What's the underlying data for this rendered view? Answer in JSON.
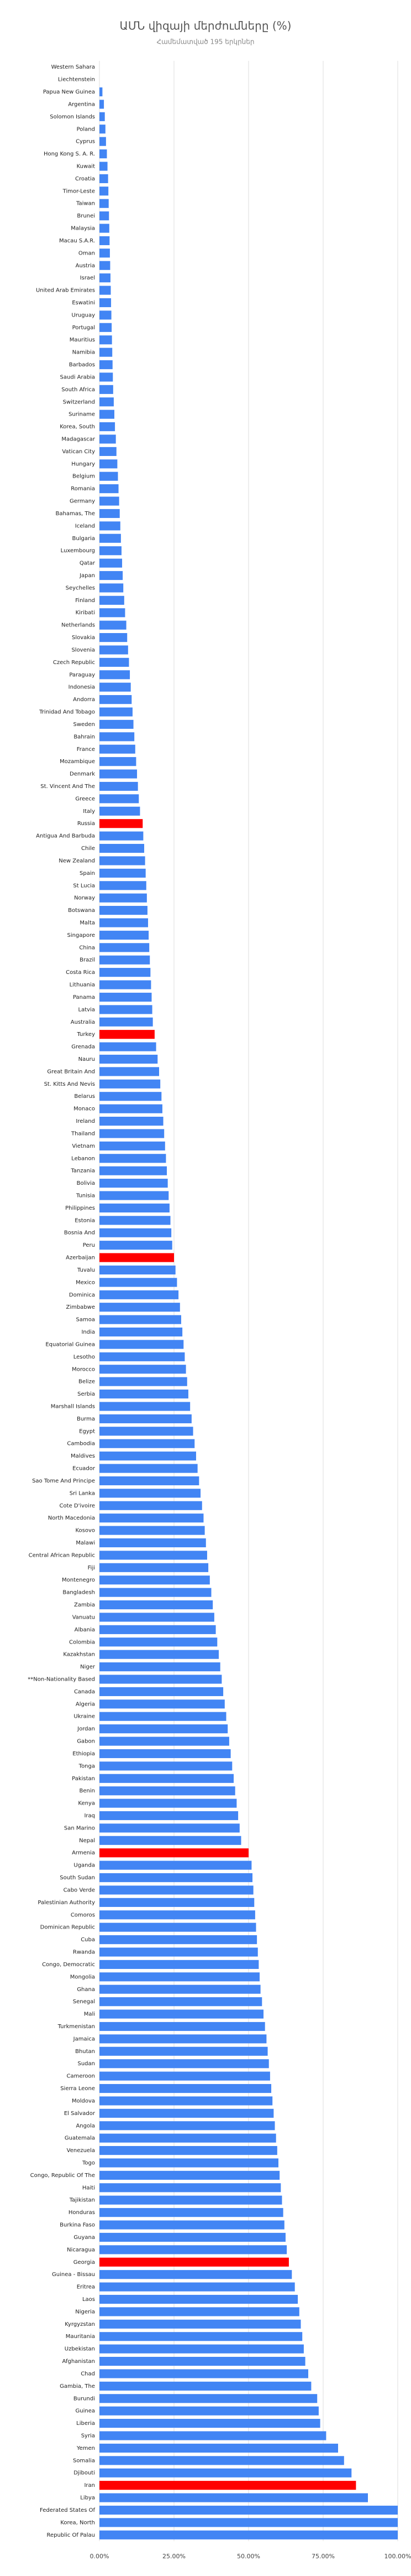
{
  "chart_data": {
    "type": "barh",
    "title": "ԱՄՆ վիզայի մերժումները (%)",
    "subtitle": "Համեմատված 195 երկրներ",
    "color": "#4285f4",
    "highlight": {
      "color": "#ff0000",
      "categories": [
        "Russia",
        "Turkey",
        "Azerbaijan",
        "Armenia",
        "Georgia",
        "Iran"
      ]
    },
    "grid": true,
    "xlim": [
      0,
      100
    ],
    "xticks": [
      {
        "value": 0,
        "label": "0.00%"
      },
      {
        "value": 25,
        "label": "25.00%"
      },
      {
        "value": 50,
        "label": "50.00%"
      },
      {
        "value": 75,
        "label": "75.00%"
      },
      {
        "value": 100,
        "label": "100.00%"
      }
    ],
    "categories": [
      "Western Sahara",
      "Liechtenstein",
      "Papua New Guinea",
      "Argentina",
      "Solomon Islands",
      "Poland",
      "Cyprus",
      "Hong Kong S. A. R.",
      "Kuwait",
      "Croatia",
      "Timor-Leste",
      "Taiwan",
      "Brunei",
      "Malaysia",
      "Macau S.A.R.",
      "Oman",
      "Austria",
      "Israel",
      "United Arab Emirates",
      "Eswatini",
      "Uruguay",
      "Portugal",
      "Mauritius",
      "Namibia",
      "Barbados",
      "Saudi Arabia",
      "South Africa",
      "Switzerland",
      "Suriname",
      "Korea, South",
      "Madagascar",
      "Vatican City",
      "Hungary",
      "Belgium",
      "Romania",
      "Germany",
      "Bahamas, The",
      "Iceland",
      "Bulgaria",
      "Luxembourg",
      "Qatar",
      "Japan",
      "Seychelles",
      "Finland",
      "Kiribati",
      "Netherlands",
      "Slovakia",
      "Slovenia",
      "Czech Republic",
      "Paraguay",
      "Indonesia",
      "Andorra",
      "Trinidad And Tobago",
      "Sweden",
      "Bahrain",
      "France",
      "Mozambique",
      "Denmark",
      "St. Vincent And The",
      "Greece",
      "Italy",
      "Russia",
      "Antigua And Barbuda",
      "Chile",
      "New Zealand",
      "Spain",
      "St Lucia",
      "Norway",
      "Botswana",
      "Malta",
      "Singapore",
      "China",
      "Brazil",
      "Costa Rica",
      "Lithuania",
      "Panama",
      "Latvia",
      "Australia",
      "Turkey",
      "Grenada",
      "Nauru",
      "Great Britain And",
      "St. Kitts And Nevis",
      "Belarus",
      "Monaco",
      "Ireland",
      "Thailand",
      "Vietnam",
      "Lebanon",
      "Tanzania",
      "Bolivia",
      "Tunisia",
      "Philippines",
      "Estonia",
      "Bosnia And",
      "Peru",
      "Azerbaijan",
      "Tuvalu",
      "Mexico",
      "Dominica",
      "Zimbabwe",
      "Samoa",
      "India",
      "Equatorial Guinea",
      "Lesotho",
      "Morocco",
      "Belize",
      "Serbia",
      "Marshall Islands",
      "Burma",
      "Egypt",
      "Cambodia",
      "Maldives",
      "Ecuador",
      "Sao Tome And Principe",
      "Sri Lanka",
      "Cote D'ivoire",
      "North Macedonia",
      "Kosovo",
      "Malawi",
      "Central African Republic",
      "Fiji",
      "Montenegro",
      "Bangladesh",
      "Zambia",
      "Vanuatu",
      "Albania",
      "Colombia",
      "Kazakhstan",
      "Niger",
      "**Non-Nationality Based",
      "Canada",
      "Algeria",
      "Ukraine",
      "Jordan",
      "Gabon",
      "Ethiopia",
      "Tonga",
      "Pakistan",
      "Benin",
      "Kenya",
      "Iraq",
      "San Marino",
      "Nepal",
      "Armenia",
      "Uganda",
      "South Sudan",
      "Cabo Verde",
      "Palestinian Authority",
      "Comoros",
      "Dominican Republic",
      "Cuba",
      "Rwanda",
      "Congo, Democratic",
      "Mongolia",
      "Ghana",
      "Senegal",
      "Mali",
      "Turkmenistan",
      "Jamaica",
      "Bhutan",
      "Sudan",
      "Cameroon",
      "Sierra Leone",
      "Moldova",
      "El Salvador",
      "Angola",
      "Guatemala",
      "Venezuela",
      "Togo",
      "Congo, Republic Of The",
      "Haiti",
      "Tajikistan",
      "Honduras",
      "Burkina Faso",
      "Guyana",
      "Nicaragua",
      "Georgia",
      "Guinea - Bissau",
      "Eritrea",
      "Laos",
      "Nigeria",
      "Kyrgyzstan",
      "Mauritania",
      "Uzbekistan",
      "Afghanistan",
      "Chad",
      "Gambia, The",
      "Burundi",
      "Guinea",
      "Liberia",
      "Syria",
      "Yemen",
      "Somalia",
      "Djibouti",
      "Iran",
      "Libya",
      "Federated States Of",
      "Korea, North",
      "Republic Of Palau"
    ],
    "values": [
      0,
      0,
      1.0,
      1.5,
      1.8,
      2.0,
      2.2,
      2.5,
      2.7,
      2.9,
      3.0,
      3.1,
      3.2,
      3.3,
      3.4,
      3.5,
      3.6,
      3.7,
      3.8,
      3.9,
      4.0,
      4.1,
      4.2,
      4.3,
      4.4,
      4.5,
      4.6,
      4.8,
      5.0,
      5.2,
      5.5,
      5.7,
      6.0,
      6.2,
      6.4,
      6.6,
      6.8,
      7.0,
      7.2,
      7.4,
      7.6,
      7.8,
      8.0,
      8.3,
      8.6,
      9.0,
      9.3,
      9.6,
      9.9,
      10.2,
      10.5,
      10.8,
      11.1,
      11.4,
      11.7,
      12.0,
      12.3,
      12.6,
      12.9,
      13.2,
      13.6,
      14.5,
      14.7,
      15.0,
      15.3,
      15.5,
      15.7,
      15.9,
      16.1,
      16.3,
      16.5,
      16.7,
      16.9,
      17.1,
      17.3,
      17.5,
      17.7,
      17.9,
      18.5,
      19.0,
      19.5,
      20.0,
      20.4,
      20.8,
      21.1,
      21.4,
      21.7,
      22.0,
      22.3,
      22.6,
      22.9,
      23.2,
      23.5,
      23.8,
      24.1,
      24.4,
      25.0,
      25.5,
      26.0,
      26.5,
      27.0,
      27.4,
      27.8,
      28.2,
      28.6,
      29.0,
      29.4,
      29.8,
      30.4,
      30.9,
      31.4,
      31.9,
      32.4,
      32.9,
      33.4,
      33.9,
      34.4,
      34.9,
      35.3,
      35.7,
      36.1,
      36.5,
      37.0,
      37.5,
      38.0,
      38.5,
      39.0,
      39.5,
      40.0,
      40.5,
      41.0,
      41.5,
      42.0,
      42.5,
      43.0,
      43.5,
      44.0,
      44.5,
      45.0,
      45.5,
      46.0,
      46.5,
      47.0,
      47.5,
      50.0,
      51.0,
      51.3,
      51.6,
      51.9,
      52.2,
      52.5,
      52.8,
      53.1,
      53.4,
      53.7,
      54.0,
      54.5,
      55.0,
      55.5,
      56.0,
      56.4,
      56.8,
      57.2,
      57.6,
      58.0,
      58.4,
      58.8,
      59.2,
      59.6,
      60.0,
      60.4,
      60.8,
      61.2,
      61.6,
      62.0,
      62.4,
      62.8,
      63.5,
      64.5,
      65.5,
      66.5,
      67.0,
      67.5,
      68.0,
      68.5,
      69.0,
      70.0,
      71.0,
      73.0,
      73.5,
      74.0,
      76.0,
      80.0,
      82.0,
      84.5,
      86.0,
      90.0,
      100,
      100,
      100
    ]
  }
}
